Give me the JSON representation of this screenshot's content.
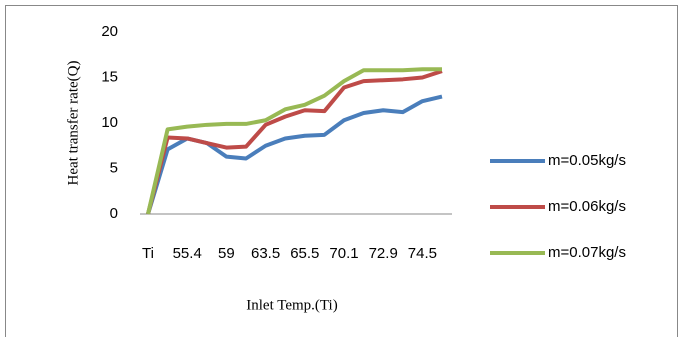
{
  "chart_data": {
    "type": "line",
    "x_label": "Inlet Temp.(Ti)",
    "y_label": "Heat transfer rate(Q)",
    "categories": [
      "Ti",
      null,
      "55.4",
      null,
      "59",
      null,
      "63.5",
      null,
      "65.5",
      null,
      "70.1",
      null,
      "72.9",
      null,
      "74.5",
      null
    ],
    "series": [
      {
        "name": "m=0.05kg/s",
        "color": "#4a7ebb",
        "values": [
          0,
          7.1,
          8.3,
          7.8,
          6.3,
          6.1,
          7.5,
          8.3,
          8.6,
          8.7,
          10.3,
          11.1,
          11.4,
          11.2,
          12.4,
          12.9
        ]
      },
      {
        "name": "m=0.06kg/s",
        "color": "#be4b48",
        "values": [
          0,
          8.4,
          8.3,
          7.8,
          7.3,
          7.4,
          9.8,
          10.7,
          11.4,
          11.3,
          13.9,
          14.6,
          14.7,
          14.8,
          15.0,
          15.7
        ]
      },
      {
        "name": "m=0.07kg/s",
        "color": "#98b954",
        "values": [
          0,
          9.3,
          9.6,
          9.8,
          9.9,
          9.9,
          10.3,
          11.5,
          12.0,
          13.0,
          14.6,
          15.8,
          15.8,
          15.8,
          15.9,
          15.9
        ]
      }
    ],
    "ylim": [
      0,
      20
    ],
    "yticks": [
      0,
      5,
      10,
      15,
      20
    ],
    "grid": false,
    "legend": "right"
  }
}
